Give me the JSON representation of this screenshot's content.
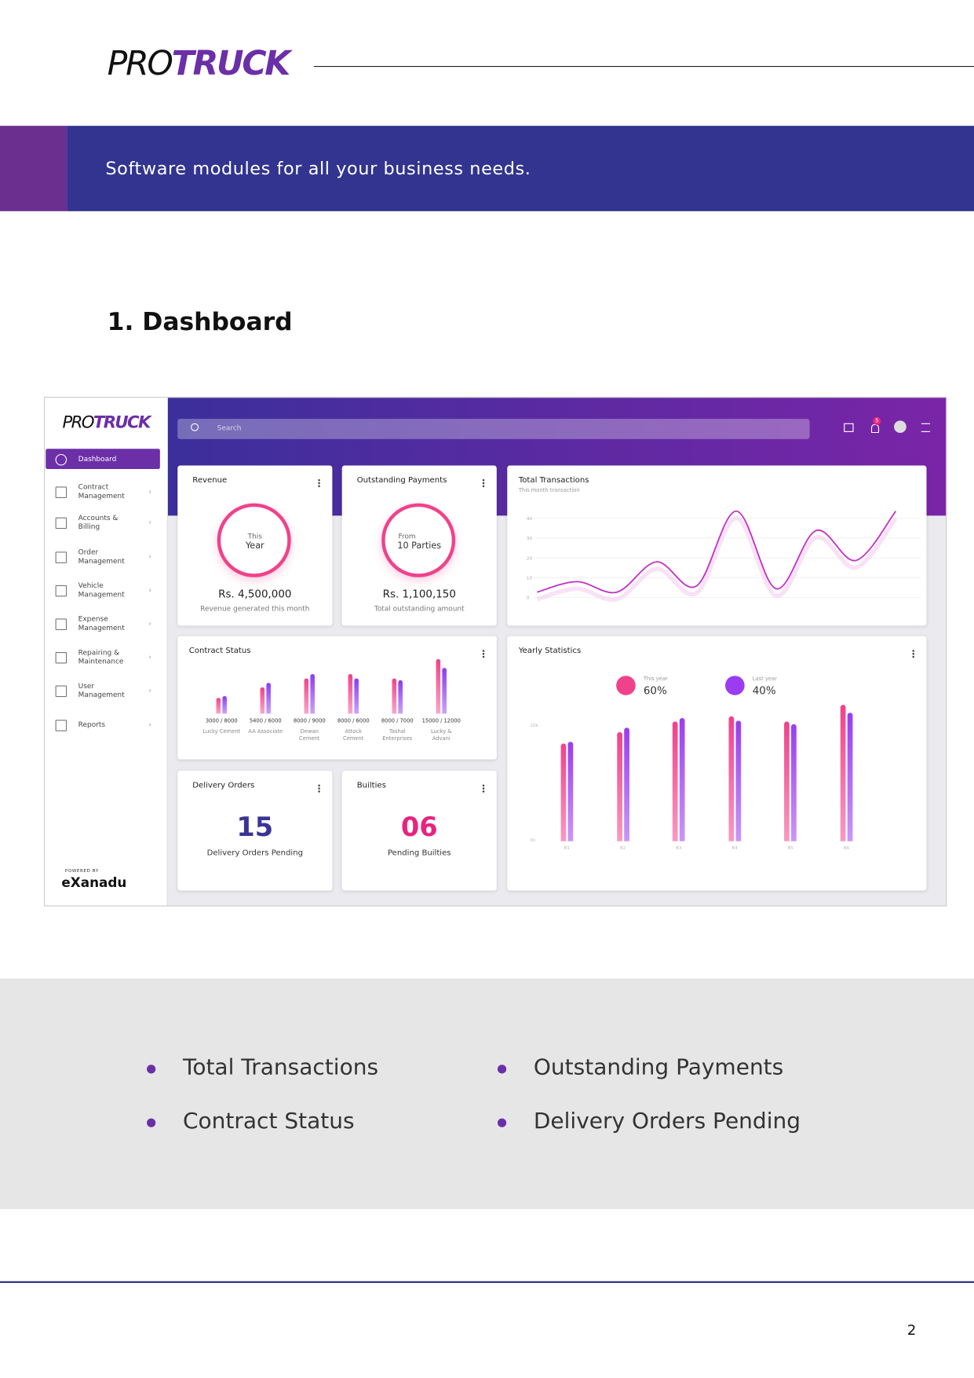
{
  "header": {
    "logo_pro": "PRO",
    "logo_truck": "TRUCK"
  },
  "banner": {
    "text": "Software modules for all your business needs."
  },
  "section_title": "1. Dashboard",
  "dashboard": {
    "logo_pro": "PRO",
    "logo_truck": "TRUCK",
    "search_placeholder": "Search",
    "notification_count": "5",
    "sidebar": [
      "Dashboard",
      "Contract Management",
      "Accounts & Billing",
      "Order Management",
      "Vehicle Management",
      "Expense Management",
      "Repairing & Maintenance",
      "User Management",
      "Reports"
    ],
    "powered_by": "POWERED BY",
    "powered_brand": "eXanadu",
    "revenue": {
      "title": "Revenue",
      "ring_top": "This",
      "ring_main": "Year",
      "amount": "Rs. 4,500,000",
      "caption": "Revenue generated this month"
    },
    "outstanding": {
      "title": "Outstanding Payments",
      "ring_top": "From",
      "ring_main": "10 Parties",
      "amount": "Rs. 1,100,150",
      "caption": "Total outstanding amount"
    },
    "delivery": {
      "title": "Delivery Orders",
      "number": "15",
      "caption": "Delivery Orders Pending"
    },
    "builties": {
      "title": "Builties",
      "number": "06",
      "caption": "Pending Builties"
    }
  },
  "chart_data": [
    {
      "type": "line",
      "title": "Total Transactions",
      "subtitle": "This month transaction",
      "values": [
        2.7,
        8,
        2.7,
        18,
        5.8,
        43.6,
        4.4,
        33.8,
        18.7,
        43.6
      ],
      "color": "#c22fc4",
      "ylim": [
        0,
        40
      ],
      "yticks": [
        0,
        10,
        20,
        30,
        40
      ],
      "grid": true
    },
    {
      "type": "bar",
      "title": "Contract Status",
      "categories": [
        "Lucky Cement",
        "AA Associate",
        "Dewan Cement",
        "Attock Cement",
        "Tashal Enterprises",
        "Lucky & Advani"
      ],
      "counts": [
        "3000 / 8000",
        "5400 / 6000",
        "8000 / 9000",
        "8000 / 6000",
        "8000 / 7000",
        "15000 / 12000"
      ],
      "series": [
        {
          "color": "#f0428a",
          "values": [
            18,
            30,
            40,
            45,
            40,
            62
          ]
        },
        {
          "color": "#8a3cf0",
          "values": [
            20,
            35,
            45,
            40,
            38,
            52
          ]
        }
      ]
    },
    {
      "type": "bar",
      "title": "Yearly Statistics",
      "categories": [
        "B1",
        "B2",
        "B3",
        "B4",
        "B5",
        "B6"
      ],
      "ylim": [
        0,
        12.5
      ],
      "yticks": [
        {
          "value": 0,
          "label": "0k"
        },
        {
          "value": 10,
          "label": "10k"
        }
      ],
      "series": [
        {
          "name": "This year",
          "color": "#f0428a",
          "share": 60,
          "share_label": "60%",
          "values": [
            8.5,
            9.5,
            10.4,
            10.9,
            10.4,
            11.9
          ]
        },
        {
          "name": "Last year",
          "color": "#9b3cf0",
          "share": 40,
          "share_label": "40%",
          "values": [
            8.7,
            9.9,
            10.7,
            10.5,
            10.2,
            11.2
          ]
        }
      ]
    }
  ]
}
